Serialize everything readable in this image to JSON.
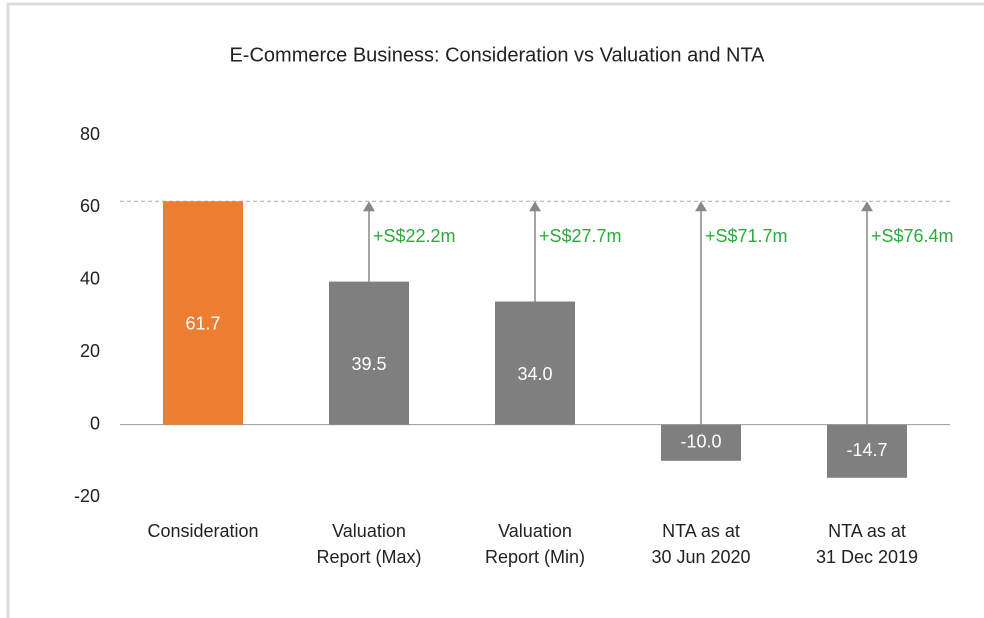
{
  "chart_data": {
    "type": "bar",
    "title": "E-Commerce Business: Consideration vs Valuation and NTA",
    "categories": [
      [
        "Consideration"
      ],
      [
        "Valuation",
        "Report (Max)"
      ],
      [
        "Valuation",
        "Report (Min)"
      ],
      [
        "NTA as at",
        "30 Jun 2020"
      ],
      [
        "NTA as at",
        "31 Dec 2019"
      ]
    ],
    "values": [
      61.7,
      39.5,
      34.0,
      -10.0,
      -14.7
    ],
    "value_labels": [
      "61.7",
      "39.5",
      "34.0",
      "-10.0",
      "-14.7"
    ],
    "colors": [
      "#ed7d31",
      "#7f7f7f",
      "#7f7f7f",
      "#7f7f7f",
      "#7f7f7f"
    ],
    "annotations": [
      "+S$22.2m",
      "+S$27.7m",
      "+S$71.7m",
      "+S$76.4m"
    ],
    "annotation_color": "#2eaa3c",
    "ylim": [
      -20,
      80
    ],
    "yticks": [
      -20,
      0,
      20,
      40,
      60,
      80
    ],
    "grid": false
  }
}
